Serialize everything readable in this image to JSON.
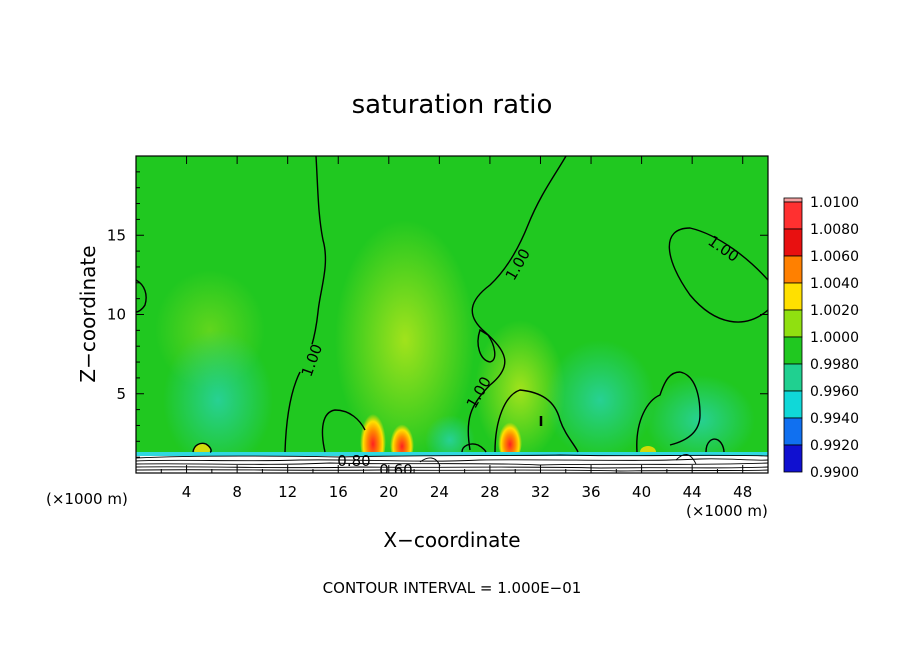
{
  "chart_data": {
    "type": "heatmap",
    "title": "saturation ratio",
    "xlabel": "X−coordinate",
    "ylabel": "Z−coordinate",
    "x_unit_left": "(×1000 m)",
    "x_unit_right": "(×1000 m)",
    "xlim": [
      0,
      50
    ],
    "ylim": [
      0,
      20
    ],
    "xticks": [
      4,
      8,
      12,
      16,
      20,
      24,
      28,
      32,
      36,
      40,
      44,
      48
    ],
    "yticks": [
      5,
      10,
      15
    ],
    "colorbar": {
      "levels": [
        "1.0100",
        "1.0080",
        "1.0060",
        "1.0040",
        "1.0020",
        "1.0000",
        "0.9980",
        "0.9960",
        "0.9940",
        "0.9920",
        "0.9900"
      ],
      "colors": [
        "#f2a0a0",
        "#ff3030",
        "#e81010",
        "#ff8000",
        "#ffe000",
        "#90e010",
        "#20c820",
        "#20d090",
        "#10d8d8",
        "#1070f0",
        "#1010d0",
        "#5010a0"
      ]
    },
    "contour_labels": [
      "1.00",
      "1.00",
      "1.00",
      "1.00",
      "1.00",
      "0.80",
      "0.60"
    ],
    "contour_interval_note": "CONTOUR INTERVAL = 1.000E−01"
  }
}
